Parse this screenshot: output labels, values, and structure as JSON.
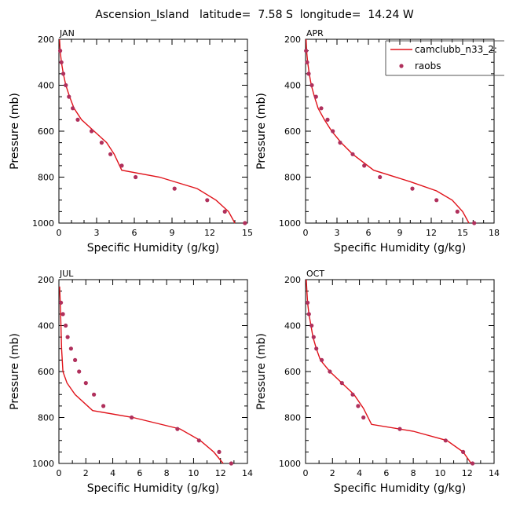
{
  "title": "Ascension_Island   latitude=  7.58 S  longitude=  14.24 W",
  "legend": {
    "model": "camclubb_n33_2:",
    "obs": "raobs"
  },
  "colors": {
    "model": "#e0121a",
    "obs": "#b0305c"
  },
  "chart_data": [
    {
      "type": "line",
      "panel": "JAN",
      "title": "JAN",
      "xlabel": "Specific Humidity (g/kg)",
      "ylabel": "Pressure (mb)",
      "xlim": [
        0,
        15
      ],
      "xticks": [
        0,
        3,
        6,
        9,
        12,
        15
      ],
      "ylim": [
        1000,
        200
      ],
      "yticks": [
        200,
        400,
        600,
        800,
        1000
      ],
      "model": [
        [
          0.05,
          200
        ],
        [
          0.1,
          250
        ],
        [
          0.2,
          300
        ],
        [
          0.35,
          350
        ],
        [
          0.55,
          400
        ],
        [
          0.85,
          450
        ],
        [
          1.2,
          500
        ],
        [
          1.8,
          550
        ],
        [
          2.8,
          600
        ],
        [
          3.8,
          650
        ],
        [
          4.4,
          700
        ],
        [
          5.0,
          770
        ],
        [
          8.0,
          800
        ],
        [
          11.0,
          850
        ],
        [
          12.5,
          900
        ],
        [
          13.5,
          950
        ],
        [
          14.0,
          1000
        ]
      ],
      "obs": [
        [
          0.1,
          250
        ],
        [
          0.2,
          300
        ],
        [
          0.35,
          350
        ],
        [
          0.55,
          400
        ],
        [
          0.8,
          450
        ],
        [
          1.1,
          500
        ],
        [
          1.5,
          550
        ],
        [
          2.6,
          600
        ],
        [
          3.4,
          650
        ],
        [
          4.1,
          700
        ],
        [
          5.0,
          750
        ],
        [
          6.1,
          800
        ],
        [
          9.2,
          850
        ],
        [
          11.8,
          900
        ],
        [
          13.2,
          950
        ],
        [
          14.8,
          1000
        ]
      ]
    },
    {
      "type": "line",
      "panel": "APR",
      "title": "APR",
      "xlabel": "Specific Humidity (g/kg)",
      "ylabel": "Pressure (mb)",
      "xlim": [
        0,
        18
      ],
      "xticks": [
        0,
        3,
        6,
        9,
        12,
        15,
        18
      ],
      "ylim": [
        1000,
        200
      ],
      "yticks": [
        200,
        400,
        600,
        800,
        1000
      ],
      "model": [
        [
          0.05,
          200
        ],
        [
          0.1,
          250
        ],
        [
          0.2,
          300
        ],
        [
          0.35,
          350
        ],
        [
          0.55,
          400
        ],
        [
          0.85,
          450
        ],
        [
          1.2,
          500
        ],
        [
          1.8,
          550
        ],
        [
          2.5,
          600
        ],
        [
          3.4,
          650
        ],
        [
          4.5,
          700
        ],
        [
          6.5,
          770
        ],
        [
          10.0,
          820
        ],
        [
          12.5,
          860
        ],
        [
          14.0,
          900
        ],
        [
          15.0,
          950
        ],
        [
          15.6,
          1000
        ]
      ],
      "obs": [
        [
          0.05,
          250
        ],
        [
          0.15,
          300
        ],
        [
          0.3,
          350
        ],
        [
          0.6,
          400
        ],
        [
          1.0,
          450
        ],
        [
          1.5,
          500
        ],
        [
          2.1,
          550
        ],
        [
          2.6,
          600
        ],
        [
          3.3,
          650
        ],
        [
          4.5,
          700
        ],
        [
          5.6,
          750
        ],
        [
          7.1,
          800
        ],
        [
          10.2,
          850
        ],
        [
          12.5,
          900
        ],
        [
          14.5,
          950
        ],
        [
          16.1,
          1000
        ]
      ]
    },
    {
      "type": "line",
      "panel": "JUL",
      "title": "JUL",
      "xlabel": "Specific Humidity (g/kg)",
      "ylabel": "Pressure (mb)",
      "xlim": [
        0,
        14
      ],
      "xticks": [
        0,
        2,
        4,
        6,
        8,
        10,
        12,
        14
      ],
      "ylim": [
        1000,
        200
      ],
      "yticks": [
        200,
        400,
        600,
        800,
        1000
      ],
      "model": [
        [
          0.05,
          230
        ],
        [
          0.1,
          300
        ],
        [
          0.15,
          400
        ],
        [
          0.2,
          500
        ],
        [
          0.3,
          600
        ],
        [
          0.6,
          650
        ],
        [
          1.2,
          700
        ],
        [
          2.5,
          770
        ],
        [
          5.5,
          800
        ],
        [
          9.0,
          850
        ],
        [
          10.5,
          900
        ],
        [
          11.5,
          950
        ],
        [
          12.2,
          1000
        ]
      ],
      "obs": [
        [
          0.15,
          300
        ],
        [
          0.3,
          350
        ],
        [
          0.5,
          400
        ],
        [
          0.65,
          450
        ],
        [
          0.9,
          500
        ],
        [
          1.2,
          550
        ],
        [
          1.5,
          600
        ],
        [
          2.0,
          650
        ],
        [
          2.6,
          700
        ],
        [
          3.3,
          750
        ],
        [
          5.4,
          800
        ],
        [
          8.8,
          850
        ],
        [
          10.4,
          900
        ],
        [
          11.9,
          950
        ],
        [
          12.8,
          1000
        ]
      ]
    },
    {
      "type": "line",
      "panel": "OCT",
      "title": "OCT",
      "xlabel": "Specific Humidity (g/kg)",
      "ylabel": "Pressure (mb)",
      "xlim": [
        0,
        14
      ],
      "xticks": [
        0,
        2,
        4,
        6,
        8,
        10,
        12,
        14
      ],
      "ylim": [
        1000,
        200
      ],
      "yticks": [
        200,
        400,
        600,
        800,
        1000
      ],
      "model": [
        [
          0.05,
          200
        ],
        [
          0.1,
          250
        ],
        [
          0.15,
          300
        ],
        [
          0.25,
          350
        ],
        [
          0.4,
          400
        ],
        [
          0.55,
          450
        ],
        [
          0.8,
          500
        ],
        [
          1.1,
          550
        ],
        [
          1.8,
          600
        ],
        [
          2.7,
          650
        ],
        [
          3.6,
          700
        ],
        [
          4.3,
          760
        ],
        [
          4.9,
          830
        ],
        [
          8.0,
          860
        ],
        [
          10.5,
          900
        ],
        [
          11.7,
          950
        ],
        [
          12.3,
          1000
        ]
      ],
      "obs": [
        [
          0.15,
          300
        ],
        [
          0.25,
          350
        ],
        [
          0.45,
          400
        ],
        [
          0.6,
          450
        ],
        [
          0.8,
          500
        ],
        [
          1.2,
          550
        ],
        [
          1.8,
          600
        ],
        [
          2.7,
          650
        ],
        [
          3.5,
          700
        ],
        [
          3.9,
          750
        ],
        [
          4.3,
          800
        ],
        [
          7.0,
          850
        ],
        [
          10.4,
          900
        ],
        [
          11.7,
          950
        ],
        [
          12.4,
          1000
        ]
      ]
    }
  ]
}
